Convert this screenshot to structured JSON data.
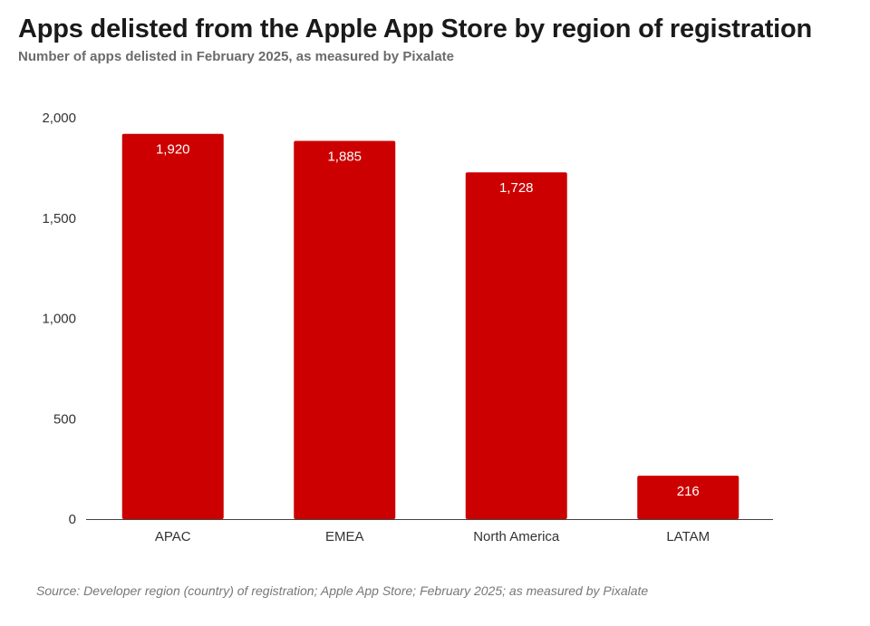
{
  "chart_data": {
    "type": "bar",
    "title": "Apps delisted from the Apple App Store by region of registration",
    "subtitle": "Number of apps delisted in February 2025, as measured by Pixalate",
    "categories": [
      "APAC",
      "EMEA",
      "North America",
      "LATAM"
    ],
    "values": [
      1920,
      1885,
      1728,
      216
    ],
    "value_labels": [
      "1,920",
      "1,885",
      "1,728",
      "216"
    ],
    "yticks": [
      0,
      500,
      1000,
      1500,
      2000
    ],
    "ytick_labels": [
      "0",
      "500",
      "1,000",
      "1,500",
      "2,000"
    ],
    "ylim": [
      0,
      2000
    ],
    "xlabel": "",
    "ylabel": "",
    "grid": false,
    "bar_color": "#cc0000",
    "source": "Source: Developer region (country) of registration; Apple App Store; February 2025; as measured by Pixalate"
  }
}
